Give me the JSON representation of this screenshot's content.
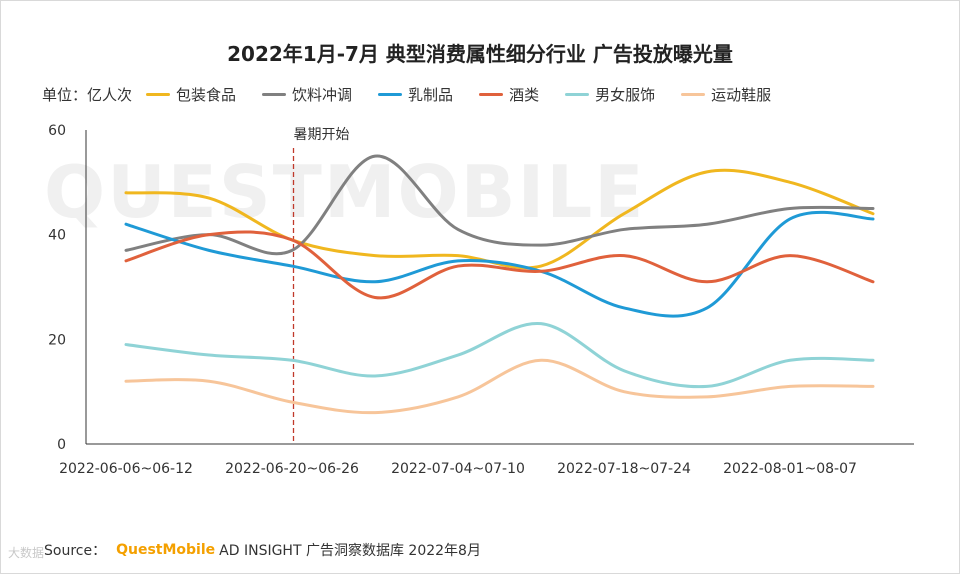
{
  "title": "2022年1月-7月 典型消费属性细分行业 广告投放曝光量",
  "unit_label": "单位：亿人次",
  "watermark": "QUESTMOBILE",
  "footer": {
    "source_label": "Source：",
    "brand": "QuestMobile",
    "text": "AD INSIGHT 广告洞察数据库 2022年8月"
  },
  "corner_watermark": "大数据",
  "chart_data": {
    "type": "line",
    "title": "2022年1月-7月 典型消费属性细分行业 广告投放曝光量",
    "ylabel": "单位：亿人次",
    "xlabel": "",
    "ylim": [
      0,
      60
    ],
    "yticks": [
      0,
      20,
      40,
      60
    ],
    "grid": false,
    "legend_position": "top",
    "x_tick_labels": [
      "2022-06-06~06-12",
      "2022-06-20~06-26",
      "2022-07-04~07-10",
      "2022-07-18~07-24",
      "2022-08-01~08-07"
    ],
    "x_tick_index": [
      0,
      2,
      4,
      6,
      8
    ],
    "x_count": 10,
    "annotation": {
      "label": "暑期开始",
      "x_index": 2,
      "color": "#c0392b"
    },
    "series": [
      {
        "name": "包装食品",
        "color": "#f0b71f",
        "values": [
          48,
          47,
          39,
          36,
          36,
          34,
          44,
          52,
          50,
          44
        ]
      },
      {
        "name": "饮料冲调",
        "color": "#808080",
        "values": [
          37,
          40,
          37,
          55,
          41,
          38,
          41,
          42,
          45,
          45
        ]
      },
      {
        "name": "乳制品",
        "color": "#1f9ad6",
        "values": [
          42,
          37,
          34,
          31,
          35,
          33,
          26,
          26,
          43,
          43
        ]
      },
      {
        "name": "酒类",
        "color": "#e0613c",
        "values": [
          35,
          40,
          39,
          28,
          34,
          33,
          36,
          31,
          36,
          31
        ]
      },
      {
        "name": "男女服饰",
        "color": "#8fd3d6",
        "values": [
          19,
          17,
          16,
          13,
          17,
          23,
          14,
          11,
          16,
          16
        ]
      },
      {
        "name": "运动鞋服",
        "color": "#f7c59a",
        "values": [
          12,
          12,
          8,
          6,
          9,
          16,
          10,
          9,
          11,
          11
        ]
      }
    ]
  }
}
